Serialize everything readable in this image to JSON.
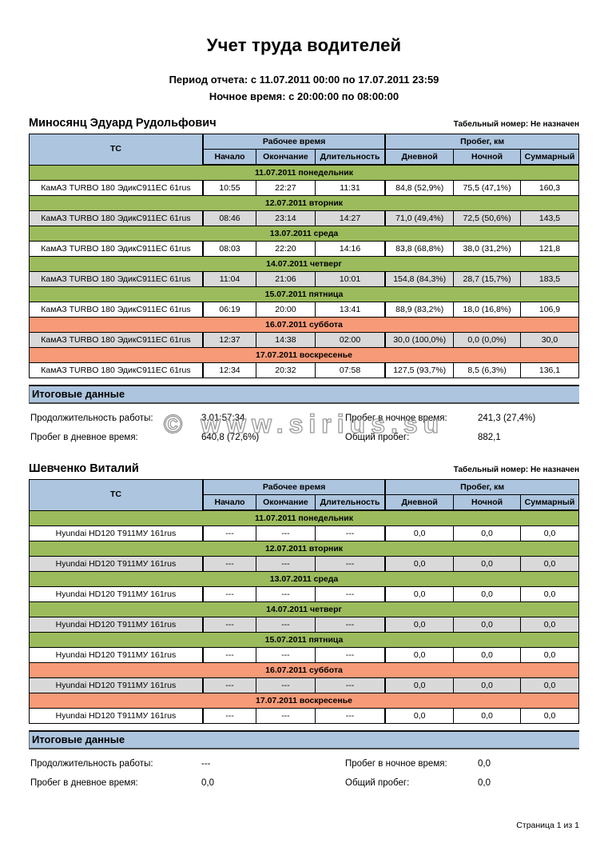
{
  "report": {
    "title": "Учет труда водителей",
    "period_line": "Период отчета: с 11.07.2011 00:00 по 17.07.2011 23:59",
    "night_time_line": "Ночное время: с 20:00:00 по 08:00:00",
    "watermark": "© www.sirius.su",
    "page_footer": "Страница 1 из 1"
  },
  "table": {
    "columns": {
      "tc": "ТС",
      "work_time_group": "Рабочее время",
      "mileage_group": "Пробег, км",
      "start": "Начало",
      "end": "Окончание",
      "duration": "Длительность",
      "day": "Дневной",
      "night": "Ночной",
      "total": "Суммарный"
    }
  },
  "summary_labels": {
    "title": "Итоговые данные",
    "work_duration": "Продолжительность работы:",
    "day_mileage": "Пробег в дневное время:",
    "night_mileage": "Пробег в ночное время:",
    "total_mileage": "Общий пробег:"
  },
  "colors": {
    "header_blue": "#ADC5DE",
    "weekday_green": "#9CBB5C",
    "weekend_orange": "#F79A78",
    "alt_row_gray": "#D9D9D9",
    "summary_bar_blue": "#ADC5DE"
  },
  "drivers": [
    {
      "name": "Миносянц Эдуард Рудольфович",
      "personnel_number": "Табельный номер: Не назначен",
      "days": [
        {
          "date": "11.07.2011 понедельник",
          "weekend": false,
          "vehicle": "КамАЗ TURBO 180 ЭдикС911ЕС 61rus",
          "start": "10:55",
          "end": "22:27",
          "duration": "11:31",
          "day_mileage": "84,8 (52,9%)",
          "night_mileage": "75,5 (47,1%)",
          "total_mileage": "160,3"
        },
        {
          "date": "12.07.2011 вторник",
          "weekend": false,
          "vehicle": "КамАЗ TURBO 180 ЭдикС911ЕС 61rus",
          "start": "08:46",
          "end": "23:14",
          "duration": "14:27",
          "day_mileage": "71,0 (49,4%)",
          "night_mileage": "72,5 (50,6%)",
          "total_mileage": "143,5"
        },
        {
          "date": "13.07.2011 среда",
          "weekend": false,
          "vehicle": "КамАЗ TURBO 180 ЭдикС911ЕС 61rus",
          "start": "08:03",
          "end": "22:20",
          "duration": "14:16",
          "day_mileage": "83,8 (68,8%)",
          "night_mileage": "38,0 (31,2%)",
          "total_mileage": "121,8"
        },
        {
          "date": "14.07.2011 четверг",
          "weekend": false,
          "vehicle": "КамАЗ TURBO 180 ЭдикС911ЕС 61rus",
          "start": "11:04",
          "end": "21:06",
          "duration": "10:01",
          "day_mileage": "154,8 (84,3%)",
          "night_mileage": "28,7 (15,7%)",
          "total_mileage": "183,5"
        },
        {
          "date": "15.07.2011 пятница",
          "weekend": false,
          "vehicle": "КамАЗ TURBO 180 ЭдикС911ЕС 61rus",
          "start": "06:19",
          "end": "20:00",
          "duration": "13:41",
          "day_mileage": "88,9 (83,2%)",
          "night_mileage": "18,0 (16,8%)",
          "total_mileage": "106,9"
        },
        {
          "date": "16.07.2011 суббота",
          "weekend": true,
          "vehicle": "КамАЗ TURBO 180 ЭдикС911ЕС 61rus",
          "start": "12:37",
          "end": "14:38",
          "duration": "02:00",
          "day_mileage": "30,0 (100,0%)",
          "night_mileage": "0,0 (0,0%)",
          "total_mileage": "30,0"
        },
        {
          "date": "17.07.2011 воскресенье",
          "weekend": true,
          "vehicle": "КамАЗ TURBO 180 ЭдикС911ЕС 61rus",
          "start": "12:34",
          "end": "20:32",
          "duration": "07:58",
          "day_mileage": "127,5 (93,7%)",
          "night_mileage": "8,5 (6,3%)",
          "total_mileage": "136,1"
        }
      ],
      "summary": {
        "work_duration": "3.01:57:34",
        "night_mileage": "241,3 (27,4%)",
        "day_mileage": "640,8 (72,6%)",
        "total_mileage": "882,1"
      }
    },
    {
      "name": "Шевченко Виталий",
      "personnel_number": "Табельный номер: Не назначен",
      "days": [
        {
          "date": "11.07.2011 понедельник",
          "weekend": false,
          "vehicle": "Hyundai HD120 Т911МУ 161rus",
          "start": "---",
          "end": "---",
          "duration": "---",
          "day_mileage": "0,0",
          "night_mileage": "0,0",
          "total_mileage": "0,0"
        },
        {
          "date": "12.07.2011 вторник",
          "weekend": false,
          "vehicle": "Hyundai HD120 Т911МУ 161rus",
          "start": "---",
          "end": "---",
          "duration": "---",
          "day_mileage": "0,0",
          "night_mileage": "0,0",
          "total_mileage": "0,0"
        },
        {
          "date": "13.07.2011 среда",
          "weekend": false,
          "vehicle": "Hyundai HD120 Т911МУ 161rus",
          "start": "---",
          "end": "---",
          "duration": "---",
          "day_mileage": "0,0",
          "night_mileage": "0,0",
          "total_mileage": "0,0"
        },
        {
          "date": "14.07.2011 четверг",
          "weekend": false,
          "vehicle": "Hyundai HD120 Т911МУ 161rus",
          "start": "---",
          "end": "---",
          "duration": "---",
          "day_mileage": "0,0",
          "night_mileage": "0,0",
          "total_mileage": "0,0"
        },
        {
          "date": "15.07.2011 пятница",
          "weekend": false,
          "vehicle": "Hyundai HD120 Т911МУ 161rus",
          "start": "---",
          "end": "---",
          "duration": "---",
          "day_mileage": "0,0",
          "night_mileage": "0,0",
          "total_mileage": "0,0"
        },
        {
          "date": "16.07.2011 суббота",
          "weekend": true,
          "vehicle": "Hyundai HD120 Т911МУ 161rus",
          "start": "---",
          "end": "---",
          "duration": "---",
          "day_mileage": "0,0",
          "night_mileage": "0,0",
          "total_mileage": "0,0"
        },
        {
          "date": "17.07.2011 воскресенье",
          "weekend": true,
          "vehicle": "Hyundai HD120 Т911МУ 161rus",
          "start": "---",
          "end": "---",
          "duration": "---",
          "day_mileage": "0,0",
          "night_mileage": "0,0",
          "total_mileage": "0,0"
        }
      ],
      "summary": {
        "work_duration": "---",
        "night_mileage": "0,0",
        "day_mileage": "0,0",
        "total_mileage": "0,0"
      }
    }
  ]
}
